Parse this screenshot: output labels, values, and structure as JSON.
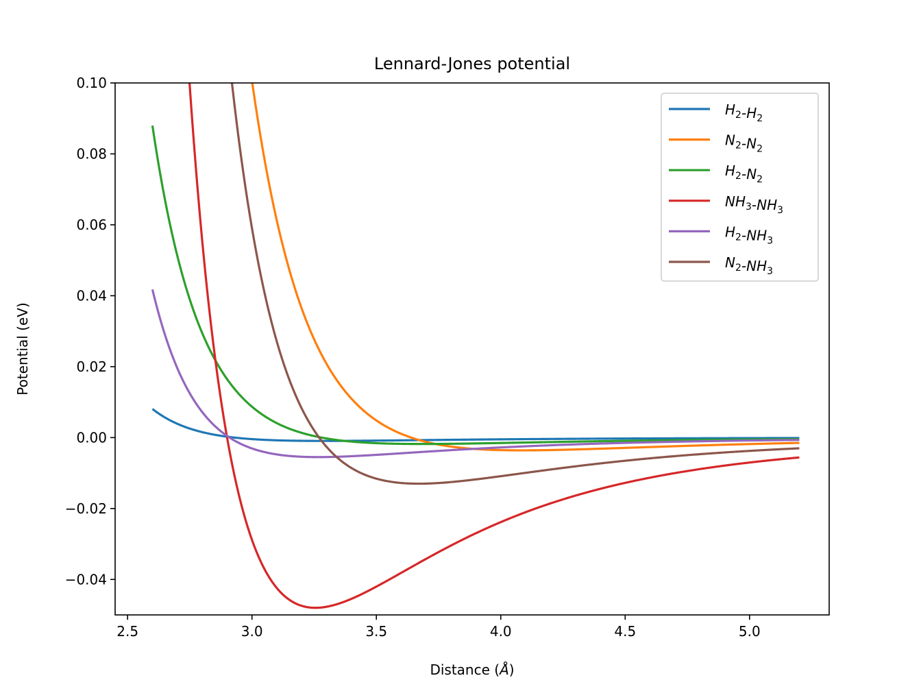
{
  "chart_data": {
    "type": "line",
    "title": "Lennard-Jones potential",
    "xlabel": "Distance (",
    "xlabel_unit": "Å",
    "xlabel_close": ")",
    "ylabel": "Potential (eV)",
    "xlim": [
      2.45,
      5.32
    ],
    "ylim": [
      -0.05,
      0.1
    ],
    "x_ticks": [
      2.5,
      3.0,
      3.5,
      4.0,
      4.5,
      5.0
    ],
    "x_tick_labels": [
      "2.5",
      "3.0",
      "3.5",
      "4.0",
      "4.5",
      "5.0"
    ],
    "y_ticks": [
      -0.04,
      -0.02,
      0.0,
      0.02,
      0.04,
      0.06,
      0.08,
      0.1
    ],
    "y_tick_labels": [
      "−0.04",
      "−0.02",
      "0.00",
      "0.02",
      "0.04",
      "0.06",
      "0.08",
      "0.10"
    ],
    "grid": false,
    "legend_position": "top-right",
    "x_range": [
      2.6,
      5.2
    ],
    "series": [
      {
        "name": "H2-H2",
        "legend_parts": [
          [
            "H",
            "2"
          ],
          [
            "-"
          ],
          [
            "H",
            "2"
          ]
        ],
        "color": "#1f77b4",
        "epsilon": 0.00094,
        "sigma": 2.93
      },
      {
        "name": "N2-N2",
        "legend_parts": [
          [
            "N",
            "2"
          ],
          [
            "-"
          ],
          [
            "N",
            "2"
          ]
        ],
        "color": "#ff7f0e",
        "epsilon": 0.0036,
        "sigma": 3.64
      },
      {
        "name": "H2-N2",
        "legend_parts": [
          [
            "H",
            "2"
          ],
          [
            "-"
          ],
          [
            "N",
            "2"
          ]
        ],
        "color": "#2ca02c",
        "epsilon": 0.0018,
        "sigma": 3.28
      },
      {
        "name": "NH3-NH3",
        "legend_parts": [
          [
            "NH",
            "3"
          ],
          [
            "-"
          ],
          [
            "NH",
            "3"
          ]
        ],
        "color": "#d62728",
        "epsilon": 0.048,
        "sigma": 2.9
      },
      {
        "name": "H2-NH3",
        "legend_parts": [
          [
            "H",
            "2"
          ],
          [
            "-"
          ],
          [
            "NH",
            "3"
          ]
        ],
        "color": "#9467bd",
        "epsilon": 0.0055,
        "sigma": 2.91
      },
      {
        "name": "N2-NH3",
        "legend_parts": [
          [
            "N",
            "2"
          ],
          [
            "-"
          ],
          [
            "NH",
            "3"
          ]
        ],
        "color": "#8c564b",
        "epsilon": 0.013,
        "sigma": 3.27
      }
    ]
  }
}
